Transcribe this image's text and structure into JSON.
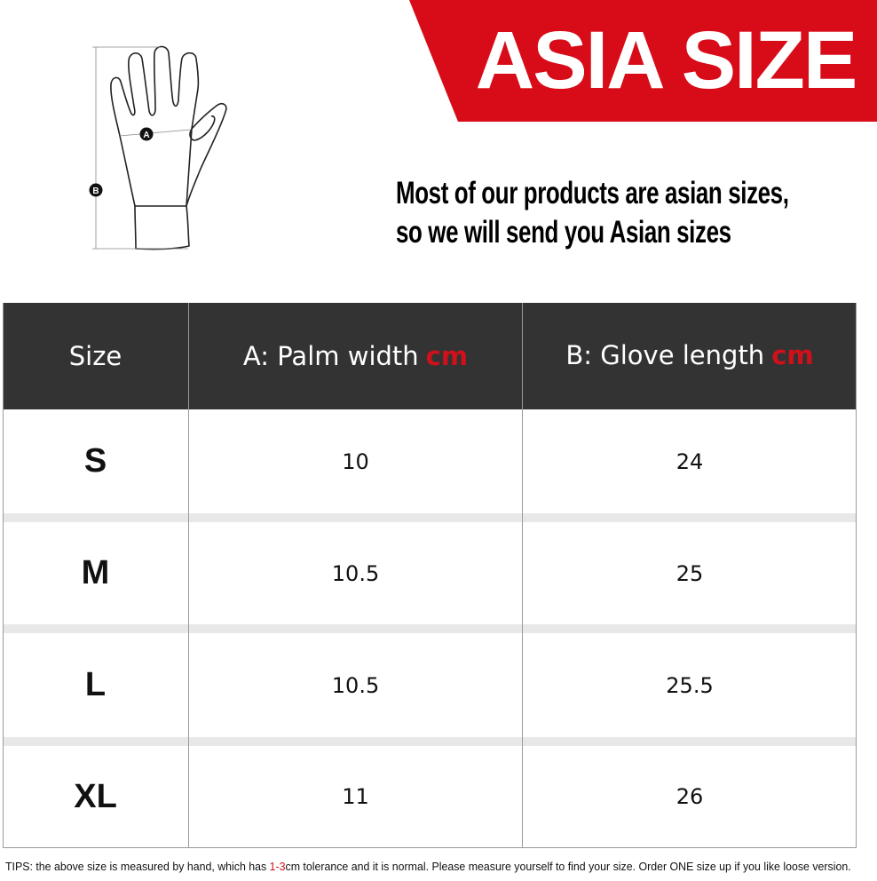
{
  "banner": {
    "title": "ASIA SIZE",
    "color": "#d80c18"
  },
  "subtitle": {
    "line1": "Most of our products are asian sizes,",
    "line2": "so we will send you Asian sizes"
  },
  "diagram": {
    "label_a": "A",
    "label_b": "B"
  },
  "table": {
    "headers": {
      "size": "Size",
      "palm": "A: Palm width",
      "length": "B: Glove length",
      "unit": "cm"
    },
    "rows": [
      {
        "size": "S",
        "palm": "10",
        "length": "24"
      },
      {
        "size": "M",
        "palm": "10.5",
        "length": "25"
      },
      {
        "size": "L",
        "palm": "10.5",
        "length": "25.5"
      },
      {
        "size": "XL",
        "palm": "11",
        "length": "26"
      }
    ]
  },
  "tips": {
    "before": "TIPS:  the above size is measured by hand, which has ",
    "highlight": "1-3",
    "after": "cm tolerance and it is normal. Please measure yourself to find your size. Order ONE size up if you like loose version."
  }
}
